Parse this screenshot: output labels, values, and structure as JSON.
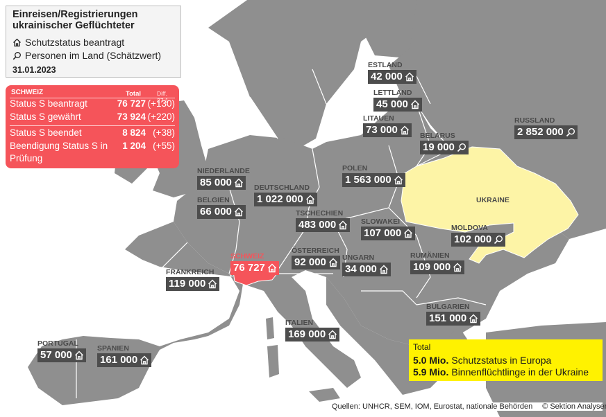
{
  "title_line1": "Einreisen/Registrierungen",
  "title_line2": "ukrainischer Geflüchteter",
  "legend": {
    "protection": {
      "icon": "house-icon",
      "label": "Schutzstatus beantragt"
    },
    "estimate": {
      "icon": "magnifier-icon",
      "label": "Personen im Land (Schätzwert)"
    }
  },
  "date": "31.01.2023",
  "switzerland_box": {
    "header": "SCHWEIZ",
    "col_total": "Total",
    "col_diff": "Diff. 27.1",
    "rows": [
      {
        "label": "Status S beantragt",
        "value": "76 727",
        "diff": "(+130)"
      },
      {
        "label": "Status S gewährt",
        "value": "73 924",
        "diff": "(+220)"
      },
      {
        "label": "Status S beendet",
        "value": "8 824",
        "diff": "(+38)"
      },
      {
        "label": "Beendigung Status S in",
        "value": "1 204",
        "diff": "(+55)"
      },
      {
        "label": "Prüfung",
        "value": "",
        "diff": ""
      }
    ]
  },
  "countries": [
    {
      "id": "estland",
      "name": "ESTLAND",
      "value": "42 000",
      "icon": "house-icon"
    },
    {
      "id": "lettland",
      "name": "LETTLAND",
      "value": "45 000",
      "icon": "house-icon"
    },
    {
      "id": "litauen",
      "name": "LITAUEN",
      "value": "73 000",
      "icon": "house-icon"
    },
    {
      "id": "belarus",
      "name": "BELARUS",
      "value": "19 000",
      "icon": "magnifier-icon"
    },
    {
      "id": "russland",
      "name": "RUSSLAND",
      "value": "2 852 000",
      "icon": "magnifier-icon"
    },
    {
      "id": "polen",
      "name": "POLEN",
      "value": "1 563 000",
      "icon": "house-icon"
    },
    {
      "id": "niederlande",
      "name": "NIEDERLANDE",
      "value": "85 000",
      "icon": "house-icon"
    },
    {
      "id": "deutschland",
      "name": "DEUTSCHLAND",
      "value": "1 022 000",
      "icon": "house-icon"
    },
    {
      "id": "belgien",
      "name": "BELGIEN",
      "value": "66 000",
      "icon": "house-icon"
    },
    {
      "id": "tschechien",
      "name": "TSCHECHIEN",
      "value": "483 000",
      "icon": "house-icon"
    },
    {
      "id": "slowakei",
      "name": "SLOWAKEI",
      "value": "107 000",
      "icon": "house-icon"
    },
    {
      "id": "moldova",
      "name": "MOLDOVA",
      "value": "102 000",
      "icon": "magnifier-icon"
    },
    {
      "id": "schweiz",
      "name": "SCHWEIZ",
      "value": "76 727",
      "icon": "house-icon"
    },
    {
      "id": "oesterreich",
      "name": "ÖSTERREICH",
      "value": "92 000",
      "icon": "house-icon"
    },
    {
      "id": "ungarn",
      "name": "UNGARN",
      "value": "34 000",
      "icon": "house-icon"
    },
    {
      "id": "rumaenien",
      "name": "RUMÄNIEN",
      "value": "109 000",
      "icon": "house-icon"
    },
    {
      "id": "frankreich",
      "name": "FRANKREICH",
      "value": "119 000",
      "icon": "house-icon"
    },
    {
      "id": "bulgarien",
      "name": "BULGARIEN",
      "value": "151 000",
      "icon": "house-icon"
    },
    {
      "id": "italien",
      "name": "ITALIEN",
      "value": "169 000",
      "icon": "house-icon"
    },
    {
      "id": "portugal",
      "name": "PORTUGAL",
      "value": "57 000",
      "icon": "house-icon"
    },
    {
      "id": "spanien",
      "name": "SPANIEN",
      "value": "161 000",
      "icon": "house-icon"
    }
  ],
  "ukraine_label": "UKRAINE",
  "total": {
    "title": "Total",
    "rows": [
      {
        "amount": "5.0 Mio.",
        "text": "Schutzstatus in Europa"
      },
      {
        "amount": "5.9 Mio.",
        "text": "Binnenflüchtlinge in der Ukraine"
      }
    ]
  },
  "footer": {
    "sources": "Quellen: UNHCR, SEM, IOM, Eurostat, nationale Behörden",
    "credit": "© Sektion Analysen SEM"
  },
  "colors": {
    "land": "#8f8f8f",
    "sea": "#ffffff",
    "ukraine": "#fdf4a6",
    "switzerland": "#f5545a",
    "label_box": "#4d4d4d",
    "total_box": "#fff200"
  }
}
